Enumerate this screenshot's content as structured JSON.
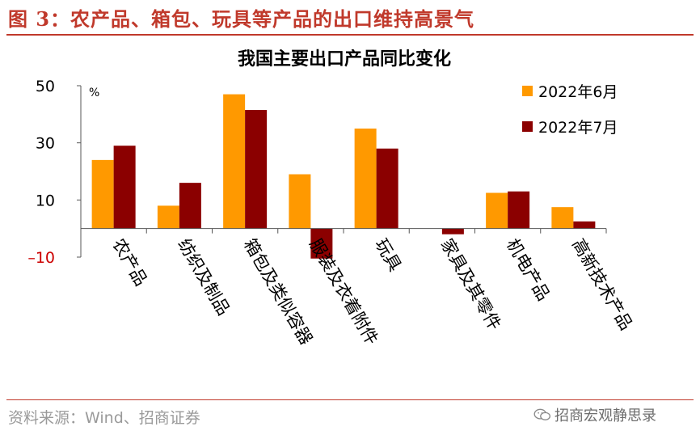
{
  "figure": {
    "title": "图 3：农产品、箱包、玩具等产品的出口维持高景气",
    "source": "资料来源：Wind、招商证券",
    "watermark": "招商宏观静思录",
    "watermark_icon": "wechat-icon"
  },
  "colors": {
    "accent": "#c0392b",
    "series_jun": "#ff9900",
    "series_jul": "#8b0000",
    "negative_tick": "#cc0000"
  },
  "chart_data": {
    "type": "bar",
    "title": "我国主要出口产品同比变化",
    "ylabel": "%",
    "xlabel": "",
    "ylim": [
      -10,
      50
    ],
    "yticks": [
      50,
      30,
      10,
      -10
    ],
    "grid": false,
    "legend_position": "top-right",
    "categories": [
      "农产品",
      "纺织及制品",
      "箱包及类似容器",
      "服装及衣着附件",
      "玩具",
      "家具及其零件",
      "机电产品",
      "高新技术产品"
    ],
    "series": [
      {
        "name": "2022年6月",
        "values": [
          24,
          8,
          47,
          19,
          35,
          0,
          12.5,
          7.5
        ]
      },
      {
        "name": "2022年7月",
        "values": [
          29,
          16,
          41.5,
          -10.5,
          28,
          -2,
          13,
          2.5
        ]
      }
    ]
  }
}
